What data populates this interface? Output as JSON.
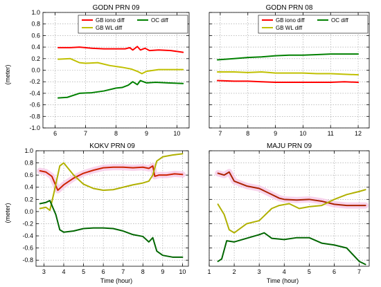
{
  "figure": {
    "y_label": "(meter)",
    "x_label": "Time (hour)"
  },
  "chart_data": [
    {
      "type": "line",
      "title": "GODN PRN 09",
      "ylim": [
        -1.0,
        1.0
      ],
      "xlim": [
        5.6,
        10.4
      ],
      "xticks": [
        6,
        7,
        8,
        9,
        10
      ],
      "yticks": [
        -1.0,
        -0.8,
        -0.6,
        -0.4,
        -0.2,
        0.0,
        0.2,
        0.4,
        0.6,
        0.8,
        1.0
      ],
      "grid": true,
      "legend": "top-right",
      "halo": false,
      "series": [
        {
          "name": "GB iono diff",
          "color": "#ff0000",
          "x": [
            6.1,
            6.5,
            6.8,
            7.2,
            7.6,
            8.0,
            8.3,
            8.45,
            8.55,
            8.7,
            8.8,
            8.95,
            9.1,
            9.4,
            9.8,
            10.2
          ],
          "y": [
            0.39,
            0.39,
            0.4,
            0.38,
            0.37,
            0.37,
            0.37,
            0.39,
            0.35,
            0.41,
            0.35,
            0.38,
            0.34,
            0.35,
            0.34,
            0.31
          ]
        },
        {
          "name": "GB WL diff",
          "color": "#c0c000",
          "x": [
            6.1,
            6.5,
            6.8,
            7.0,
            7.4,
            7.8,
            8.2,
            8.5,
            8.7,
            8.85,
            9.0,
            9.4,
            9.8,
            10.2
          ],
          "y": [
            0.19,
            0.2,
            0.13,
            0.12,
            0.13,
            0.08,
            0.05,
            0.02,
            -0.02,
            -0.06,
            -0.02,
            0.01,
            0.01,
            0.01
          ]
        },
        {
          "name": "OC diff",
          "color": "#008000",
          "x": [
            6.1,
            6.4,
            6.8,
            7.2,
            7.6,
            8.0,
            8.2,
            8.4,
            8.55,
            8.7,
            8.8,
            9.0,
            9.3,
            9.7,
            10.2
          ],
          "y": [
            -0.48,
            -0.47,
            -0.4,
            -0.39,
            -0.36,
            -0.31,
            -0.3,
            -0.26,
            -0.2,
            -0.25,
            -0.18,
            -0.22,
            -0.21,
            -0.22,
            -0.23
          ]
        }
      ]
    },
    {
      "type": "line",
      "title": "GODN PRN 08",
      "ylim": [
        -1.0,
        1.0
      ],
      "xlim": [
        6.6,
        12.4
      ],
      "xticks": [
        7,
        8,
        9,
        10,
        11,
        12
      ],
      "yticks": [
        -1.0,
        -0.8,
        -0.6,
        -0.4,
        -0.2,
        0.0,
        0.2,
        0.4,
        0.6,
        0.8,
        1.0
      ],
      "grid": true,
      "legend": "top-right",
      "halo": false,
      "series": [
        {
          "name": "GB iono diff",
          "color": "#ff0000",
          "x": [
            6.9,
            7.5,
            8.0,
            8.5,
            9.0,
            9.5,
            10.0,
            10.5,
            11.0,
            11.5,
            12.0
          ],
          "y": [
            -0.18,
            -0.19,
            -0.19,
            -0.2,
            -0.21,
            -0.21,
            -0.21,
            -0.21,
            -0.21,
            -0.2,
            -0.21
          ]
        },
        {
          "name": "GB WL diff",
          "color": "#c0c000",
          "x": [
            6.9,
            7.5,
            8.0,
            8.5,
            9.0,
            9.5,
            10.0,
            10.5,
            11.0,
            11.5,
            12.0
          ],
          "y": [
            -0.03,
            -0.03,
            -0.04,
            -0.03,
            -0.05,
            -0.05,
            -0.05,
            -0.06,
            -0.06,
            -0.07,
            -0.08
          ]
        },
        {
          "name": "OC diff",
          "color": "#008000",
          "x": [
            6.9,
            7.5,
            8.0,
            8.5,
            9.0,
            9.5,
            10.0,
            10.5,
            11.0,
            11.5,
            12.0
          ],
          "y": [
            0.18,
            0.2,
            0.22,
            0.23,
            0.25,
            0.26,
            0.26,
            0.27,
            0.28,
            0.28,
            0.28
          ]
        }
      ]
    },
    {
      "type": "line",
      "title": "KOKV PRN 09",
      "ylim": [
        -0.9,
        1.0
      ],
      "xlim": [
        2.6,
        10.3
      ],
      "xticks": [
        3,
        4,
        5,
        6,
        7,
        8,
        9,
        10
      ],
      "yticks": [
        -0.8,
        -0.6,
        -0.4,
        -0.2,
        0.0,
        0.2,
        0.4,
        0.6,
        0.8,
        1.0
      ],
      "grid": true,
      "legend": "none",
      "halo": true,
      "series": [
        {
          "color": "#cc2200",
          "x": [
            2.8,
            3.1,
            3.4,
            3.7,
            4.0,
            4.5,
            5.0,
            5.5,
            6.0,
            6.5,
            7.0,
            7.5,
            8.0,
            8.3,
            8.5,
            8.6,
            8.8,
            9.2,
            9.6,
            10.0
          ],
          "y": [
            0.67,
            0.65,
            0.58,
            0.35,
            0.44,
            0.55,
            0.63,
            0.68,
            0.72,
            0.73,
            0.73,
            0.72,
            0.73,
            0.71,
            0.75,
            0.58,
            0.6,
            0.6,
            0.62,
            0.61
          ]
        },
        {
          "color": "#b0b000",
          "x": [
            2.8,
            3.1,
            3.3,
            3.5,
            3.8,
            4.0,
            4.5,
            5.0,
            5.5,
            6.0,
            6.5,
            7.0,
            7.5,
            8.0,
            8.3,
            8.5,
            8.7,
            9.0,
            9.5,
            10.0
          ],
          "y": [
            0.05,
            0.07,
            0.02,
            0.3,
            0.75,
            0.8,
            0.6,
            0.45,
            0.38,
            0.35,
            0.36,
            0.4,
            0.44,
            0.47,
            0.5,
            0.6,
            0.83,
            0.9,
            0.93,
            0.95
          ]
        },
        {
          "color": "#006600",
          "x": [
            2.8,
            3.1,
            3.3,
            3.6,
            3.8,
            4.0,
            4.5,
            5.0,
            5.5,
            6.0,
            6.5,
            7.0,
            7.5,
            8.0,
            8.3,
            8.5,
            8.7,
            9.0,
            9.5,
            10.0
          ],
          "y": [
            0.13,
            0.15,
            0.18,
            -0.05,
            -0.3,
            -0.34,
            -0.32,
            -0.28,
            -0.27,
            -0.27,
            -0.28,
            -0.32,
            -0.38,
            -0.41,
            -0.5,
            -0.43,
            -0.65,
            -0.72,
            -0.75,
            -0.75
          ]
        }
      ]
    },
    {
      "type": "line",
      "title": "MAJU PRN 09",
      "ylim": [
        -0.9,
        1.0
      ],
      "xlim": [
        1.0,
        7.4
      ],
      "xticks": [
        1,
        2,
        3,
        4,
        5,
        6,
        7
      ],
      "yticks": [
        -0.8,
        -0.6,
        -0.4,
        -0.2,
        0.0,
        0.2,
        0.4,
        0.6,
        0.8,
        1.0
      ],
      "grid": true,
      "legend": "none",
      "halo": true,
      "series": [
        {
          "color": "#aa2200",
          "x": [
            1.35,
            1.6,
            1.8,
            2.0,
            2.5,
            3.0,
            3.5,
            3.8,
            4.0,
            4.5,
            5.0,
            5.5,
            6.0,
            6.5,
            7.0,
            7.25
          ],
          "y": [
            0.63,
            0.6,
            0.65,
            0.5,
            0.42,
            0.38,
            0.28,
            0.22,
            0.2,
            0.19,
            0.2,
            0.17,
            0.12,
            0.1,
            0.1,
            0.1
          ]
        },
        {
          "color": "#b0b000",
          "x": [
            1.35,
            1.6,
            1.8,
            2.0,
            2.5,
            3.0,
            3.5,
            3.8,
            4.2,
            4.6,
            5.0,
            5.5,
            6.0,
            6.5,
            7.0,
            7.25
          ],
          "y": [
            0.12,
            -0.05,
            -0.3,
            -0.35,
            -0.2,
            -0.15,
            0.05,
            0.1,
            0.13,
            0.05,
            0.08,
            0.1,
            0.2,
            0.28,
            0.33,
            0.36
          ]
        },
        {
          "color": "#006600",
          "x": [
            1.35,
            1.5,
            1.7,
            2.0,
            2.5,
            3.0,
            3.2,
            3.5,
            4.0,
            4.5,
            5.0,
            5.5,
            6.0,
            6.5,
            7.0,
            7.25
          ],
          "y": [
            -0.82,
            -0.78,
            -0.48,
            -0.5,
            -0.44,
            -0.38,
            -0.35,
            -0.44,
            -0.46,
            -0.43,
            -0.43,
            -0.52,
            -0.55,
            -0.6,
            -0.82,
            -0.87
          ]
        }
      ]
    }
  ]
}
